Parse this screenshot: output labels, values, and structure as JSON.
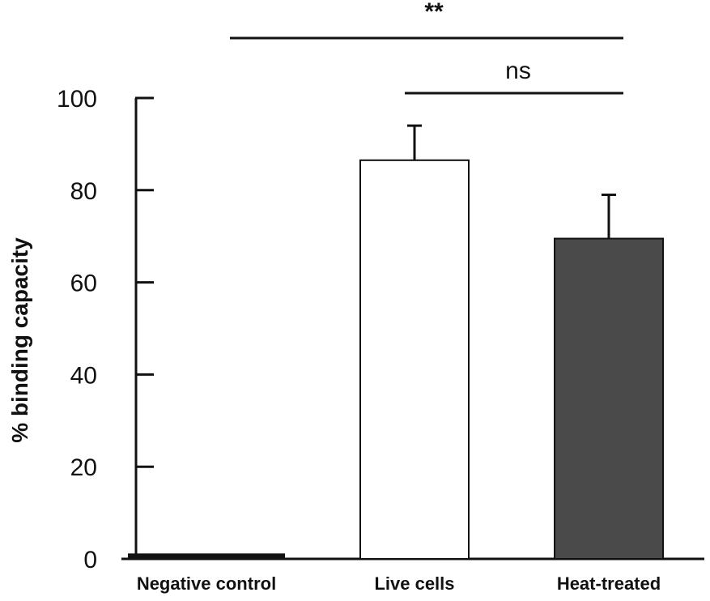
{
  "chart_data": {
    "type": "bar",
    "title": "",
    "xlabel": "",
    "ylabel": "% binding capacity",
    "ylim": [
      0,
      100
    ],
    "yticks": [
      0,
      20,
      40,
      60,
      80,
      100
    ],
    "grid": false,
    "categories": [
      "Negative control",
      "Live cells",
      "Heat-treated"
    ],
    "values": [
      1,
      86.5,
      69.5
    ],
    "errors": [
      0,
      7.5,
      9.5
    ],
    "bar_fill": [
      "#111111",
      "#ffffff",
      "#4a4a4a"
    ],
    "bar_stroke": "#111111",
    "significance": [
      {
        "from": 0,
        "to": 2,
        "label": "**"
      },
      {
        "from": 1,
        "to": 2,
        "label": "ns"
      }
    ]
  }
}
